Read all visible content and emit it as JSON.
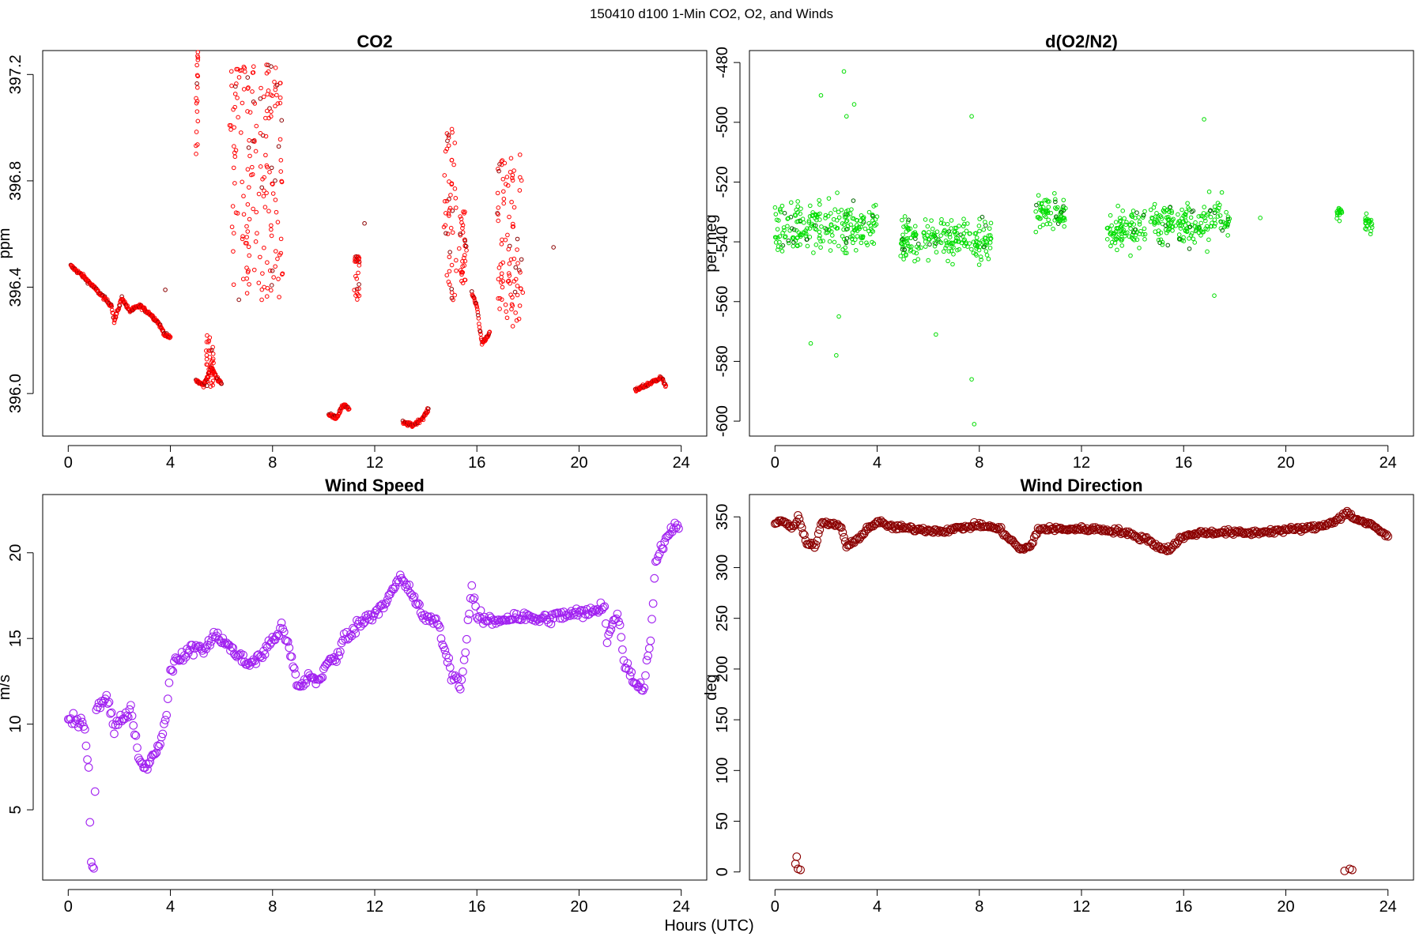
{
  "suptitle": "150410   d100   1-Min CO2, O2, and Winds",
  "xlabel": "Hours (UTC)",
  "chart_data": [
    {
      "type": "scatter",
      "title": "CO2",
      "ylabel": "ppm",
      "color": "#ff0000",
      "dark_color": "#8b0000",
      "xlim": [
        -1,
        25
      ],
      "ylim": [
        395.84,
        397.29
      ],
      "xticks": [
        0,
        4,
        8,
        12,
        16,
        20,
        24
      ],
      "yticks": [
        396.0,
        396.4,
        396.8,
        397.2
      ],
      "ytick_labels": [
        "396.0",
        "396.4",
        "396.8",
        "397.2"
      ],
      "segments": [
        {
          "x": [
            0.1,
            0.6,
            1.0,
            1.3,
            1.7,
            1.8,
            2.1,
            2.4,
            2.8,
            3.2,
            3.5,
            3.8,
            4.0
          ],
          "y": [
            396.48,
            396.44,
            396.4,
            396.37,
            396.33,
            396.27,
            396.36,
            396.31,
            396.33,
            396.3,
            396.27,
            396.22,
            396.21
          ]
        },
        {
          "x": [
            5.0,
            5.3,
            5.6,
            5.8,
            6.0
          ],
          "y": [
            396.05,
            396.03,
            396.1,
            396.06,
            396.04
          ]
        },
        {
          "x": [
            10.2,
            10.5,
            10.8,
            11.0
          ],
          "y": [
            395.92,
            395.91,
            395.96,
            395.94
          ]
        },
        {
          "x": [
            13.1,
            13.5,
            13.9,
            14.1
          ],
          "y": [
            395.89,
            395.88,
            395.91,
            395.94
          ]
        },
        {
          "x": [
            15.8,
            16.0,
            16.1,
            16.2,
            16.3,
            16.5
          ],
          "y": [
            396.38,
            396.33,
            396.25,
            396.19,
            396.2,
            396.23
          ]
        },
        {
          "x": [
            22.2,
            23.2,
            23.4
          ],
          "y": [
            396.01,
            396.06,
            396.03
          ]
        }
      ],
      "bands": [
        {
          "x": [
            5.0,
            5.1
          ],
          "y": [
            396.9,
            397.29
          ]
        },
        {
          "x": [
            6.3,
            8.4
          ],
          "y": [
            396.35,
            397.25
          ]
        },
        {
          "x": [
            11.2,
            11.4
          ],
          "y": [
            396.35,
            396.52
          ]
        },
        {
          "x": [
            14.7,
            15.2
          ],
          "y": [
            396.35,
            397.0
          ]
        },
        {
          "x": [
            15.3,
            15.6
          ],
          "y": [
            396.4,
            396.7
          ]
        },
        {
          "x": [
            16.8,
            17.8
          ],
          "y": [
            396.25,
            396.9
          ]
        },
        {
          "x": [
            5.4,
            5.7
          ],
          "y": [
            396.02,
            396.23
          ]
        }
      ],
      "singles": [
        {
          "x": 11.6,
          "y": 396.64
        },
        {
          "x": 19.0,
          "y": 396.55
        },
        {
          "x": 3.8,
          "y": 396.39
        }
      ]
    },
    {
      "type": "scatter",
      "title": "d(O2/N2)",
      "ylabel": "per meg",
      "color": "#00dd00",
      "dark_color": "#006400",
      "xlim": [
        -1,
        25
      ],
      "ylim": [
        -605,
        -476
      ],
      "xticks": [
        0,
        4,
        8,
        12,
        16,
        20,
        24
      ],
      "yticks": [
        -600,
        -580,
        -560,
        -540,
        -520,
        -500,
        -480
      ],
      "ytick_labels": [
        "-600",
        "-580",
        "-560",
        "-540",
        "-520",
        "-500",
        "-480"
      ],
      "clusters": [
        {
          "x": [
            0.0,
            4.0
          ],
          "center": -535,
          "spread": 11
        },
        {
          "x": [
            4.9,
            8.5
          ],
          "center": -539,
          "spread": 10
        },
        {
          "x": [
            10.2,
            11.4
          ],
          "center": -530,
          "spread": 8
        },
        {
          "x": [
            13.0,
            14.5
          ],
          "center": -535,
          "spread": 9
        },
        {
          "x": [
            14.7,
            17.8
          ],
          "center": -534,
          "spread": 10
        },
        {
          "x": [
            22.0,
            22.2
          ],
          "center": -531,
          "spread": 4
        },
        {
          "x": [
            23.1,
            23.4
          ],
          "center": -534,
          "spread": 5
        }
      ],
      "singles": [
        {
          "x": 2.7,
          "y": -483
        },
        {
          "x": 3.1,
          "y": -494
        },
        {
          "x": 1.8,
          "y": -491
        },
        {
          "x": 2.8,
          "y": -498
        },
        {
          "x": 7.7,
          "y": -498
        },
        {
          "x": 7.8,
          "y": -601
        },
        {
          "x": 7.7,
          "y": -586
        },
        {
          "x": 6.3,
          "y": -571
        },
        {
          "x": 1.4,
          "y": -574
        },
        {
          "x": 2.4,
          "y": -578
        },
        {
          "x": 16.8,
          "y": -499
        },
        {
          "x": 19.0,
          "y": -532
        },
        {
          "x": 17.2,
          "y": -558
        },
        {
          "x": 2.5,
          "y": -565
        }
      ]
    },
    {
      "type": "scatter",
      "title": "Wind Speed",
      "ylabel": "m/s",
      "color": "#a020f0",
      "xlim": [
        -1,
        25
      ],
      "ylim": [
        0.9,
        23.4
      ],
      "xticks": [
        0,
        4,
        8,
        12,
        16,
        20,
        24
      ],
      "yticks": [
        5,
        10,
        15,
        20
      ],
      "ytick_labels": [
        "5",
        "10",
        "15",
        "20"
      ],
      "series_x": [
        0,
        0.6,
        0.8,
        0.9,
        1.0,
        1.1,
        1.2,
        1.5,
        1.7,
        1.8,
        2.0,
        2.5,
        2.7,
        2.9,
        3.2,
        3.6,
        3.8,
        4.0,
        4.5,
        5.0,
        5.4,
        5.8,
        6.3,
        7.0,
        7.6,
        8.0,
        8.4,
        8.8,
        9.0,
        9.4,
        9.8,
        10.1,
        10.5,
        10.8,
        11.5,
        12.0,
        12.6,
        13.0,
        13.5,
        14.0,
        14.4,
        14.7,
        15.0,
        15.4,
        15.8,
        16.0,
        16.6,
        17.5,
        18.5,
        19.5,
        20.5,
        21.0,
        21.1,
        21.5,
        21.8,
        22.2,
        22.5,
        22.8,
        23.0,
        23.5,
        23.9
      ],
      "series_y": [
        10.2,
        10.0,
        7.5,
        2.0,
        1.4,
        11.0,
        11.2,
        11.6,
        10.5,
        9.5,
        10.3,
        10.8,
        8.5,
        7.5,
        7.8,
        9.0,
        10.0,
        13.3,
        14.0,
        14.5,
        14.4,
        15.3,
        14.5,
        13.5,
        14.0,
        15.0,
        15.6,
        13.5,
        12.0,
        12.8,
        12.5,
        13.5,
        13.8,
        15.0,
        16.0,
        16.5,
        17.5,
        18.5,
        17.5,
        16.0,
        16.2,
        14.5,
        13.0,
        12.3,
        18.0,
        16.2,
        16.0,
        16.3,
        16.1,
        16.4,
        16.5,
        17.0,
        15.0,
        16.5,
        13.5,
        12.5,
        12.0,
        15.0,
        19.5,
        21.2,
        21.5
      ]
    },
    {
      "type": "scatter",
      "title": "Wind Direction",
      "ylabel": "deg",
      "color": "#8b0000",
      "xlim": [
        -1,
        25
      ],
      "ylim": [
        -8,
        372
      ],
      "xticks": [
        0,
        4,
        8,
        12,
        16,
        20,
        24
      ],
      "yticks": [
        0,
        50,
        100,
        150,
        200,
        250,
        300,
        350
      ],
      "ytick_labels": [
        "0",
        "50",
        "100",
        "150",
        "200",
        "250",
        "300",
        "350"
      ],
      "series_x": [
        0,
        0.4,
        0.7,
        0.9,
        1.1,
        1.3,
        1.6,
        1.8,
        2.3,
        2.6,
        2.8,
        3.1,
        3.6,
        4.0,
        4.6,
        5.5,
        6.5,
        7.5,
        8.0,
        8.8,
        9.2,
        9.6,
        10.0,
        10.3,
        11.5,
        12.5,
        13.5,
        14.2,
        14.6,
        15.0,
        15.5,
        15.8,
        16.5,
        17.5,
        18.5,
        19.5,
        20.5,
        21.3,
        21.8,
        22.2,
        22.4,
        22.6,
        23.0,
        23.5,
        24.0
      ],
      "series_y": [
        345,
        345,
        340,
        350,
        335,
        322,
        322,
        343,
        343,
        340,
        320,
        325,
        338,
        345,
        340,
        338,
        336,
        340,
        342,
        338,
        328,
        318,
        320,
        338,
        338,
        338,
        336,
        330,
        328,
        320,
        318,
        328,
        334,
        335,
        334,
        336,
        338,
        340,
        345,
        350,
        355,
        350,
        345,
        340,
        330
      ],
      "outliers_low": [
        {
          "x": 0.8,
          "y": 8
        },
        {
          "x": 0.85,
          "y": 15
        },
        {
          "x": 0.9,
          "y": 3
        },
        {
          "x": 1.0,
          "y": 2
        },
        {
          "x": 22.3,
          "y": 1
        },
        {
          "x": 22.5,
          "y": 3
        },
        {
          "x": 22.6,
          "y": 2
        }
      ]
    }
  ]
}
